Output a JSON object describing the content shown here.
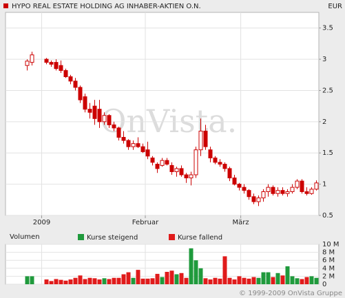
{
  "chart_data": {
    "type": "candlestick",
    "title": "HYPO REAL ESTATE HOLDING AG INHABER-AKTIEN O.N.",
    "currency": "EUR",
    "watermark": "OnVista.",
    "copyright": "© 1999-2009 OnVista Gruppe",
    "color": "#cc0000",
    "grid": true,
    "xlim": [
      -7.5,
      57.5
    ],
    "xticks": [
      {
        "value": 0,
        "label": "2009"
      },
      {
        "value": 21.5,
        "label": "Februar"
      },
      {
        "value": 41.3,
        "label": "März"
      }
    ],
    "ylim": [
      0.5,
      3.75
    ],
    "yticks": [
      0.5,
      1.0,
      1.5,
      2.0,
      2.5,
      3.0,
      3.5
    ],
    "x": [
      -3,
      -2,
      1,
      2,
      3,
      4,
      5,
      6,
      7,
      8,
      9,
      10,
      11,
      12,
      13,
      14,
      15,
      16,
      17,
      18,
      19,
      20,
      21,
      22,
      23,
      24,
      25,
      26,
      27,
      28,
      29,
      30,
      31,
      32,
      33,
      34,
      35,
      36,
      37,
      38,
      39,
      40,
      41,
      42,
      43,
      44,
      45,
      46,
      47,
      48,
      49,
      50,
      51,
      52,
      53,
      54,
      55,
      56,
      57
    ],
    "open": [
      2.9,
      2.95,
      3.0,
      2.95,
      2.95,
      2.9,
      2.82,
      2.72,
      2.65,
      2.55,
      2.4,
      2.2,
      2.25,
      2.2,
      2.0,
      2.1,
      1.95,
      1.9,
      1.75,
      1.7,
      1.6,
      1.65,
      1.6,
      1.55,
      1.42,
      1.32,
      1.3,
      1.38,
      1.3,
      1.2,
      1.25,
      1.15,
      1.1,
      1.15,
      1.55,
      1.85,
      1.55,
      1.42,
      1.35,
      1.32,
      1.25,
      1.1,
      1.0,
      0.95,
      0.9,
      0.8,
      0.72,
      0.78,
      0.88,
      0.95,
      0.85,
      0.9,
      0.85,
      0.88,
      0.95,
      1.05,
      0.88,
      0.85,
      0.92
    ],
    "high": [
      3.0,
      3.12,
      3.02,
      2.98,
      3.0,
      2.98,
      2.85,
      2.75,
      2.7,
      2.58,
      2.45,
      2.3,
      2.35,
      2.35,
      2.15,
      2.12,
      2.0,
      1.92,
      1.85,
      1.72,
      1.7,
      1.75,
      1.65,
      1.68,
      1.45,
      1.35,
      1.42,
      1.42,
      1.35,
      1.28,
      1.3,
      1.18,
      1.2,
      1.6,
      2.05,
      1.95,
      1.6,
      1.45,
      1.4,
      1.35,
      1.28,
      1.15,
      1.02,
      1.0,
      0.92,
      0.85,
      0.82,
      0.92,
      1.0,
      0.98,
      0.95,
      0.95,
      0.92,
      1.0,
      1.08,
      1.08,
      0.95,
      0.95,
      1.06
    ],
    "low": [
      2.82,
      2.9,
      2.92,
      2.88,
      2.82,
      2.78,
      2.7,
      2.6,
      2.5,
      2.3,
      2.15,
      2.05,
      1.95,
      1.9,
      1.95,
      1.9,
      1.85,
      1.7,
      1.65,
      1.55,
      1.55,
      1.58,
      1.5,
      1.4,
      1.3,
      1.18,
      1.28,
      1.3,
      1.15,
      1.12,
      1.12,
      1.02,
      0.98,
      1.1,
      1.45,
      1.55,
      1.35,
      1.32,
      1.28,
      1.2,
      1.05,
      0.98,
      0.9,
      0.85,
      0.75,
      0.68,
      0.65,
      0.72,
      0.8,
      0.82,
      0.8,
      0.82,
      0.8,
      0.85,
      0.92,
      0.85,
      0.82,
      0.83,
      0.9
    ],
    "close": [
      2.97,
      3.07,
      2.95,
      2.92,
      2.85,
      2.82,
      2.72,
      2.65,
      2.55,
      2.35,
      2.2,
      2.15,
      2.05,
      2.0,
      2.1,
      1.95,
      1.9,
      1.75,
      1.7,
      1.6,
      1.65,
      1.6,
      1.52,
      1.45,
      1.35,
      1.25,
      1.38,
      1.32,
      1.2,
      1.25,
      1.15,
      1.1,
      1.15,
      1.55,
      1.85,
      1.6,
      1.42,
      1.35,
      1.32,
      1.25,
      1.1,
      1.0,
      0.95,
      0.9,
      0.8,
      0.72,
      0.78,
      0.88,
      0.95,
      0.85,
      0.9,
      0.85,
      0.88,
      0.95,
      1.05,
      0.88,
      0.85,
      0.92,
      1.02
    ],
    "volume": {
      "label": "Volumen",
      "values": [
        2.0,
        2.0,
        1.2,
        0.8,
        1.3,
        1.1,
        0.9,
        1.2,
        1.6,
        2.2,
        1.3,
        1.6,
        1.5,
        1.2,
        1.5,
        1.3,
        1.6,
        1.6,
        2.5,
        3.0,
        1.6,
        3.6,
        1.4,
        1.4,
        1.5,
        2.6,
        1.8,
        3.1,
        3.4,
        2.5,
        2.8,
        1.6,
        9.0,
        6.0,
        4.0,
        1.5,
        1.2,
        1.6,
        1.4,
        7.0,
        1.6,
        1.2,
        2.0,
        1.6,
        1.4,
        1.8,
        1.6,
        3.0,
        3.0,
        1.8,
        2.8,
        2.2,
        4.5,
        2.0,
        1.5,
        1.3,
        1.8,
        2.0,
        1.6
      ],
      "ylim": [
        0,
        10
      ],
      "yticks": [
        0,
        {
          "value": 2,
          "label": "2 M"
        },
        {
          "value": 4,
          "label": "4 M"
        },
        {
          "value": 6,
          "label": "6 M"
        },
        {
          "value": 8,
          "label": "8 M"
        },
        {
          "value": 10,
          "label": "10 M"
        }
      ]
    },
    "legend": [
      {
        "name": "Kurse steigend",
        "color": "#1f9a3c"
      },
      {
        "name": "Kurse fallend",
        "color": "#e01b1b"
      }
    ]
  }
}
